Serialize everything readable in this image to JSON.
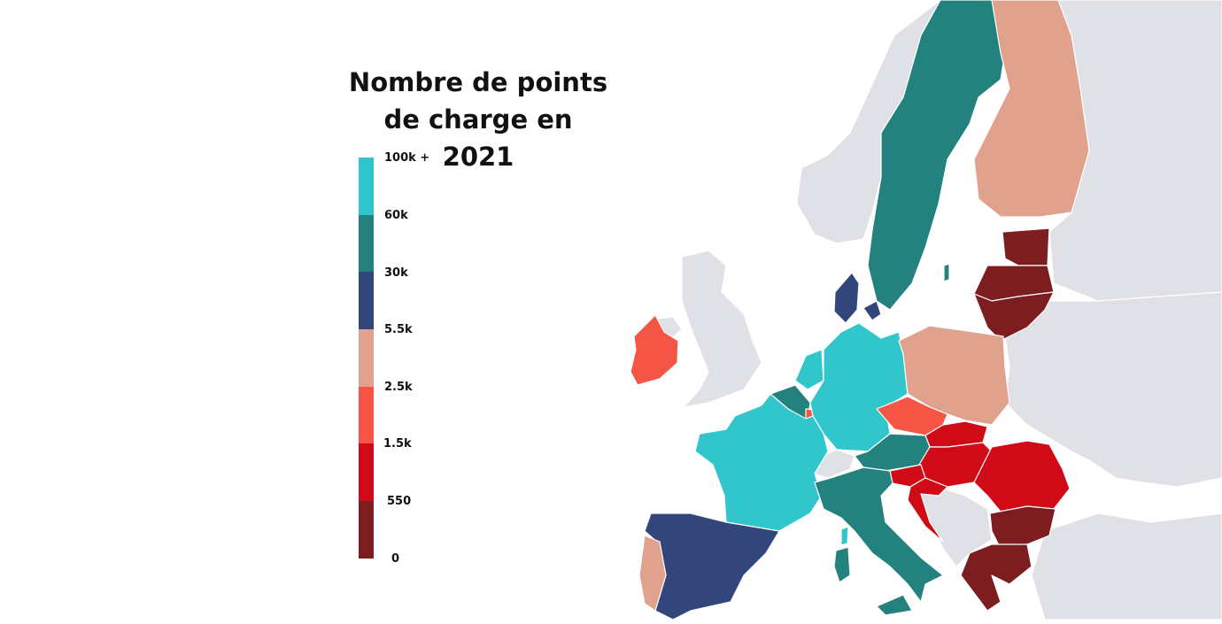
{
  "title": {
    "line1": "Nombre de points",
    "line2": "de charge en 2021"
  },
  "legend": {
    "bins": [
      {
        "label": "100k +",
        "color": "#30c6cc"
      },
      {
        "label": "60k",
        "color": "#23827d"
      },
      {
        "label": "30k",
        "color": "#33467c"
      },
      {
        "label": "5.5k",
        "color": "#e0a18d"
      },
      {
        "label": "2.5k",
        "color": "#f45544"
      },
      {
        "label": "1.5k",
        "color": "#d00b17"
      },
      {
        "label": "550",
        "color": "#7e1d1f"
      },
      {
        "label": "0",
        "color": ""
      }
    ]
  },
  "map": {
    "non_eu_color": "#e0e1e6",
    "regions": [
      {
        "name": "norway",
        "class": "non-eu"
      },
      {
        "name": "russia",
        "class": "non-eu"
      },
      {
        "name": "united-kingdom",
        "class": "non-eu"
      },
      {
        "name": "ukraine-belarus",
        "class": "non-eu"
      },
      {
        "name": "turkey",
        "class": "non-eu"
      },
      {
        "name": "balkans",
        "class": "non-eu"
      },
      {
        "name": "switzerland",
        "class": "non-eu"
      },
      {
        "name": "sweden",
        "bin": 1
      },
      {
        "name": "finland",
        "bin": 3
      },
      {
        "name": "estonia",
        "bin": 6
      },
      {
        "name": "latvia",
        "bin": 6
      },
      {
        "name": "lithuania",
        "bin": 6
      },
      {
        "name": "denmark",
        "bin": 2
      },
      {
        "name": "ireland",
        "bin": 4
      },
      {
        "name": "netherlands",
        "bin": 0
      },
      {
        "name": "belgium",
        "bin": 1
      },
      {
        "name": "luxembourg",
        "bin": 4
      },
      {
        "name": "germany",
        "bin": 0
      },
      {
        "name": "poland",
        "bin": 3
      },
      {
        "name": "czechia",
        "bin": 4
      },
      {
        "name": "slovakia",
        "bin": 5
      },
      {
        "name": "austria",
        "bin": 1
      },
      {
        "name": "hungary",
        "bin": 5
      },
      {
        "name": "slovenia",
        "bin": 5
      },
      {
        "name": "croatia",
        "bin": 5
      },
      {
        "name": "romania",
        "bin": 5
      },
      {
        "name": "bulgaria",
        "bin": 6
      },
      {
        "name": "greece",
        "bin": 6
      },
      {
        "name": "france",
        "bin": 0
      },
      {
        "name": "spain",
        "bin": 2
      },
      {
        "name": "portugal",
        "bin": 3
      },
      {
        "name": "italy",
        "bin": 1
      },
      {
        "name": "gotland",
        "bin": 1
      }
    ]
  }
}
